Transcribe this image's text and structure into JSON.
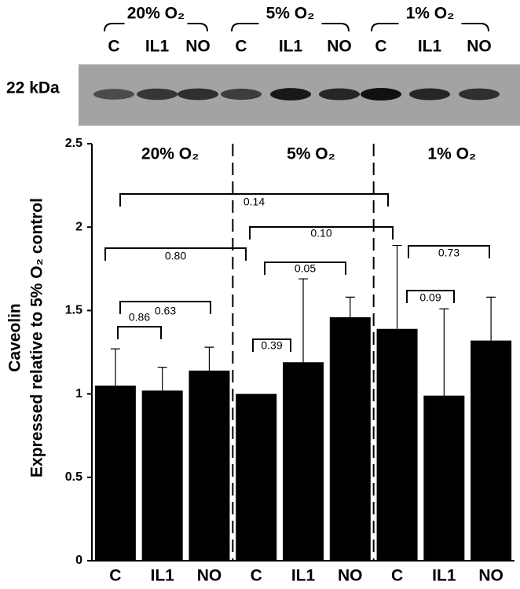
{
  "blot": {
    "marker": "22 kDa",
    "groups": [
      "20% O₂",
      "5% O₂",
      "1% O₂"
    ],
    "lanes": [
      "C",
      "IL1",
      "NO",
      "C",
      "IL1",
      "NO",
      "C",
      "IL1",
      "NO"
    ]
  },
  "chart_data": {
    "type": "bar",
    "y_label": [
      "Caveolin",
      "Expressed relative to 5% O₂ control"
    ],
    "groups": [
      "20% O₂",
      "5% O₂",
      "1% O₂"
    ],
    "categories": [
      "C",
      "IL1",
      "NO",
      "C",
      "IL1",
      "NO",
      "C",
      "IL1",
      "NO"
    ],
    "values": [
      1.05,
      1.02,
      1.14,
      1.0,
      1.19,
      1.46,
      1.39,
      0.99,
      1.32
    ],
    "errors": [
      0.22,
      0.14,
      0.14,
      null,
      0.5,
      0.12,
      0.5,
      0.52,
      0.26
    ],
    "color": "#000000",
    "ylim": [
      0,
      2.5
    ],
    "yticks": [
      0,
      0.5,
      1,
      1.5,
      2,
      2.5
    ],
    "annotations": [
      "0.14",
      "0.80",
      "0.10",
      "0.05",
      "0.73",
      "0.63",
      "0.09",
      "0.86",
      "0.39"
    ]
  }
}
